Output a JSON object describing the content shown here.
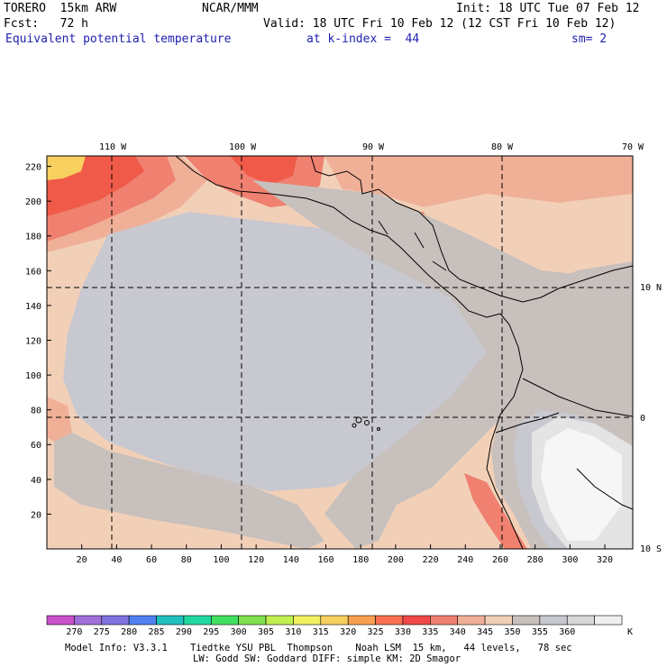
{
  "header": {
    "model": "TORERO  15km ARW",
    "center": "NCAR/MMM",
    "init": "Init: 18 UTC Tue 07 Feb 12",
    "fcst": "Fcst:   72 h",
    "valid": "Valid: 18 UTC Fri 10 Feb 12 (12 CST Fri 10 Feb 12)",
    "field": "Equivalent potential temperature",
    "level": "at k-index =  44",
    "smooth": "sm= 2"
  },
  "axes": {
    "lon_labels": [
      "110 W",
      "100 W",
      "90 W",
      "80 W",
      "70 W"
    ],
    "lat_labels": [
      "10 N",
      "0",
      "10 S"
    ],
    "y_ticks": [
      "220",
      "200",
      "180",
      "160",
      "140",
      "120",
      "100",
      "80",
      "60",
      "40",
      "20"
    ],
    "x_ticks": [
      "20",
      "40",
      "60",
      "80",
      "100",
      "120",
      "140",
      "160",
      "180",
      "200",
      "220",
      "240",
      "260",
      "280",
      "300",
      "320"
    ]
  },
  "colorbar": {
    "labels": [
      "270",
      "275",
      "280",
      "285",
      "290",
      "295",
      "300",
      "305",
      "310",
      "315",
      "320",
      "325",
      "330",
      "335",
      "340",
      "345",
      "350",
      "355",
      "360"
    ],
    "unit": "K",
    "colors": [
      "#c850c8",
      "#a070d8",
      "#8070e0",
      "#5080f0",
      "#20c0c0",
      "#20d8a0",
      "#40e060",
      "#80e050",
      "#c0f050",
      "#f0f060",
      "#f8d060",
      "#f8a050",
      "#f87050",
      "#f04848",
      "#f08070",
      "#f0b098",
      "#f2d0b8",
      "#c8c0bc",
      "#c8c8d0",
      "#d8d8d8",
      "#f0f0f0"
    ]
  },
  "map_colors": {
    "bg": "#f2d0b8",
    "warm": "#f0b098",
    "hot": "#f08070",
    "hotter": "#f05a48",
    "yellow": "#f8d060",
    "greybrown": "#c8c0bc",
    "grey": "#c8c8d0",
    "light": "#e4e4e4",
    "white": "#f6f6f6"
  },
  "footer": {
    "line1": "Model Info: V3.3.1    Tiedtke YSU PBL  Thompson    Noah LSM  15 km,   44 levels,   78 sec",
    "line2": "LW: Godd SW: Goddard DIFF: simple KM: 2D Smagor"
  }
}
